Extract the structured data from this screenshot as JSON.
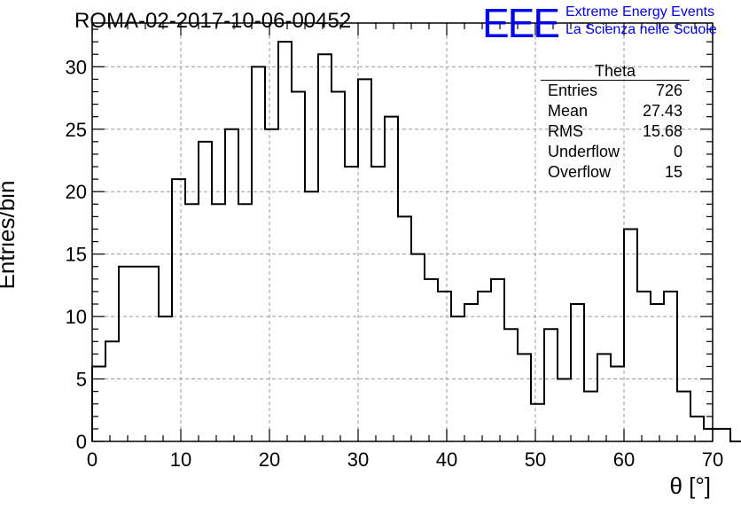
{
  "header": {
    "run_title": "ROMA-02-2017-10-06-00452",
    "logo_text": "EEE",
    "logo_line1": "Extreme Energy Events",
    "logo_line2": "La Scienza nelle Scuole",
    "logo_color": "#0000ee"
  },
  "stats": {
    "title": "Theta",
    "rows": [
      {
        "label": "Entries",
        "value": "726"
      },
      {
        "label": "Mean",
        "value": "27.43"
      },
      {
        "label": "RMS",
        "value": "15.68"
      },
      {
        "label": "Underflow",
        "value": "0"
      },
      {
        "label": "Overflow",
        "value": "15"
      }
    ]
  },
  "chart_data": {
    "type": "bar",
    "style": "step-histogram",
    "title": "ROMA-02-2017-10-06-00452",
    "xlabel": "θ [°]",
    "ylabel": "Entries/bin",
    "xlim": [
      0,
      70
    ],
    "ylim": [
      0,
      33.5
    ],
    "bin_width": 1.5,
    "bin_edges_start": 0,
    "x_ticks": [
      0,
      10,
      20,
      30,
      40,
      50,
      60,
      70
    ],
    "y_ticks": [
      0,
      5,
      10,
      15,
      20,
      25,
      30
    ],
    "grid": true,
    "line_color": "#000000",
    "values": [
      6,
      8,
      14,
      14,
      14,
      10,
      21,
      19,
      24,
      19,
      25,
      19,
      30,
      25,
      32,
      28,
      20,
      31,
      28,
      22,
      29,
      22,
      26,
      18,
      15,
      13,
      12,
      10,
      11,
      12,
      13,
      9,
      7,
      3,
      9,
      5,
      11,
      4,
      7,
      6,
      17,
      12,
      11,
      12,
      4,
      2,
      1,
      1,
      0
    ]
  }
}
